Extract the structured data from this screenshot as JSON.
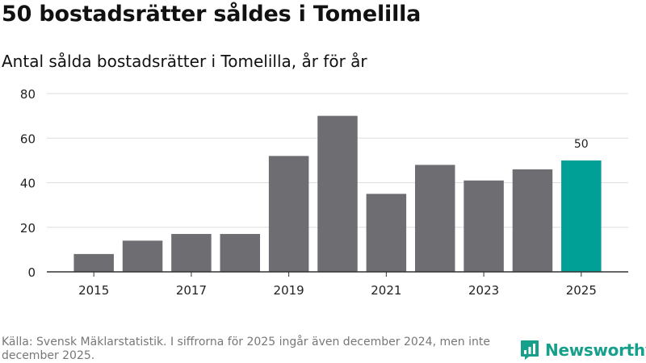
{
  "title": "50 bostadsrätter såldes i Tomelilla",
  "subtitle": "Antal sålda bostadsrätter i Tomelilla, år för år",
  "source": "Källa: Svensk Mäklarstatistik. I siffrorna för 2025 ingår även december 2024, men inte december 2025.",
  "brand": {
    "name": "Newsworthy",
    "color": "#16a08c",
    "icon": "newsworthy-logo-icon"
  },
  "colors": {
    "bar": "#6e6d72",
    "highlight": "#00a096",
    "grid": "#dddddd",
    "axis": "#333333",
    "text": "#222222"
  },
  "chart_data": {
    "type": "bar",
    "categories": [
      "2015",
      "2016",
      "2017",
      "2018",
      "2019",
      "2020",
      "2021",
      "2022",
      "2023",
      "2024",
      "2025"
    ],
    "values": [
      8,
      14,
      17,
      17,
      52,
      70,
      35,
      48,
      41,
      46,
      50
    ],
    "x_tick_labels": [
      "2015",
      "2017",
      "2019",
      "2021",
      "2023",
      "2025"
    ],
    "y_ticks": [
      0,
      20,
      40,
      60,
      80
    ],
    "ylim": [
      0,
      80
    ],
    "highlight_category": "2025",
    "data_labels": [
      {
        "category": "2025",
        "text": "50"
      }
    ],
    "xlabel": "",
    "ylabel": "",
    "grid": true
  }
}
